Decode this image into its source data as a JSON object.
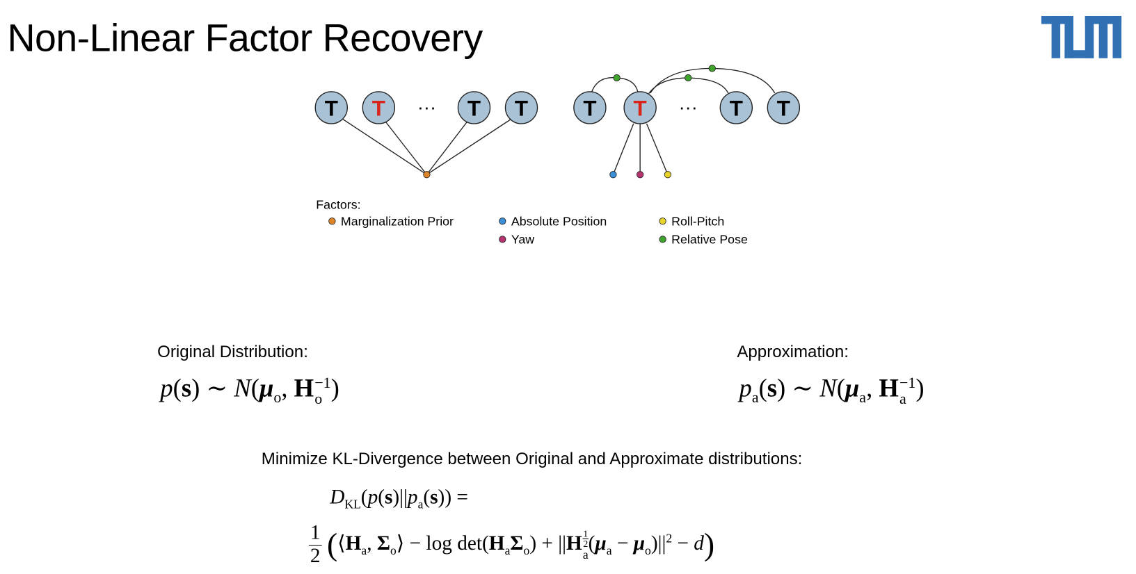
{
  "title": "Non-Linear Factor Recovery",
  "diagram": {
    "nodes": [
      "T",
      "T",
      "T",
      "T",
      "T",
      "T",
      "T",
      "T"
    ],
    "ellipses": [
      "···",
      "···"
    ]
  },
  "legend": {
    "heading": "Factors:",
    "items": [
      "Marginalization Prior",
      "Absolute Position",
      "Yaw",
      "Roll-Pitch",
      "Relative Pose"
    ]
  },
  "original": {
    "label": "Original Distribution:",
    "formula": [
      "p",
      "(",
      "s",
      ") ∼ ",
      "N",
      "(",
      "μ",
      "o",
      ", ",
      "H",
      "−1",
      "o",
      ")"
    ]
  },
  "approximation": {
    "label": "Approximation:",
    "formula": [
      "p",
      "a",
      "(",
      "s",
      ") ∼ ",
      "N",
      "(",
      "μ",
      "a",
      ", ",
      "H",
      "−1",
      "a",
      ")"
    ]
  },
  "kl": {
    "label": "Minimize KL-Divergence between Original and Approximate distributions:",
    "line1": [
      "D",
      "KL",
      "(",
      "p",
      "(",
      "s",
      ")||",
      "p",
      "a",
      "(",
      "s",
      ")) ="
    ],
    "line2": [
      "1",
      "2",
      "(",
      "⟨",
      "H",
      "a",
      ", ",
      "Σ",
      "o",
      "⟩ − log det(",
      "H",
      "a",
      "Σ",
      "o",
      ") + ||",
      "H",
      "1",
      "2",
      "a",
      "(",
      "μ",
      "a",
      " − ",
      "μ",
      "o",
      ")||",
      "2",
      " − ",
      "d",
      ")"
    ]
  }
}
